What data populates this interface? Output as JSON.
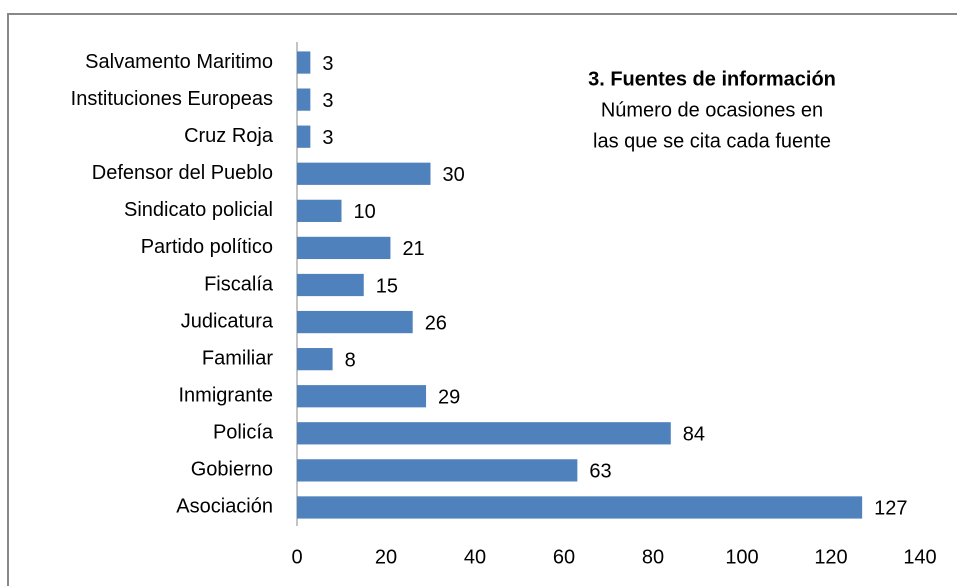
{
  "chart_data": {
    "type": "bar",
    "orientation": "horizontal",
    "title": "3. Fuentes de información",
    "subtitle": [
      "Número de ocasiones en",
      "las que se cita cada fuente"
    ],
    "categories": [
      "Salvamento Maritimo",
      "Instituciones Europeas",
      "Cruz Roja",
      "Defensor del Pueblo",
      "Sindicato policial",
      "Partido político",
      "Fiscalía",
      "Judicatura",
      "Familiar",
      "Inmigrante",
      "Policía",
      "Gobierno",
      "Asociación"
    ],
    "values": [
      3,
      3,
      3,
      30,
      10,
      21,
      15,
      26,
      8,
      29,
      84,
      63,
      127
    ],
    "color": "#4f81bd",
    "xlim": [
      0,
      140
    ],
    "xticks": [
      0,
      20,
      40,
      60,
      80,
      100,
      120,
      140
    ],
    "grid": false
  }
}
